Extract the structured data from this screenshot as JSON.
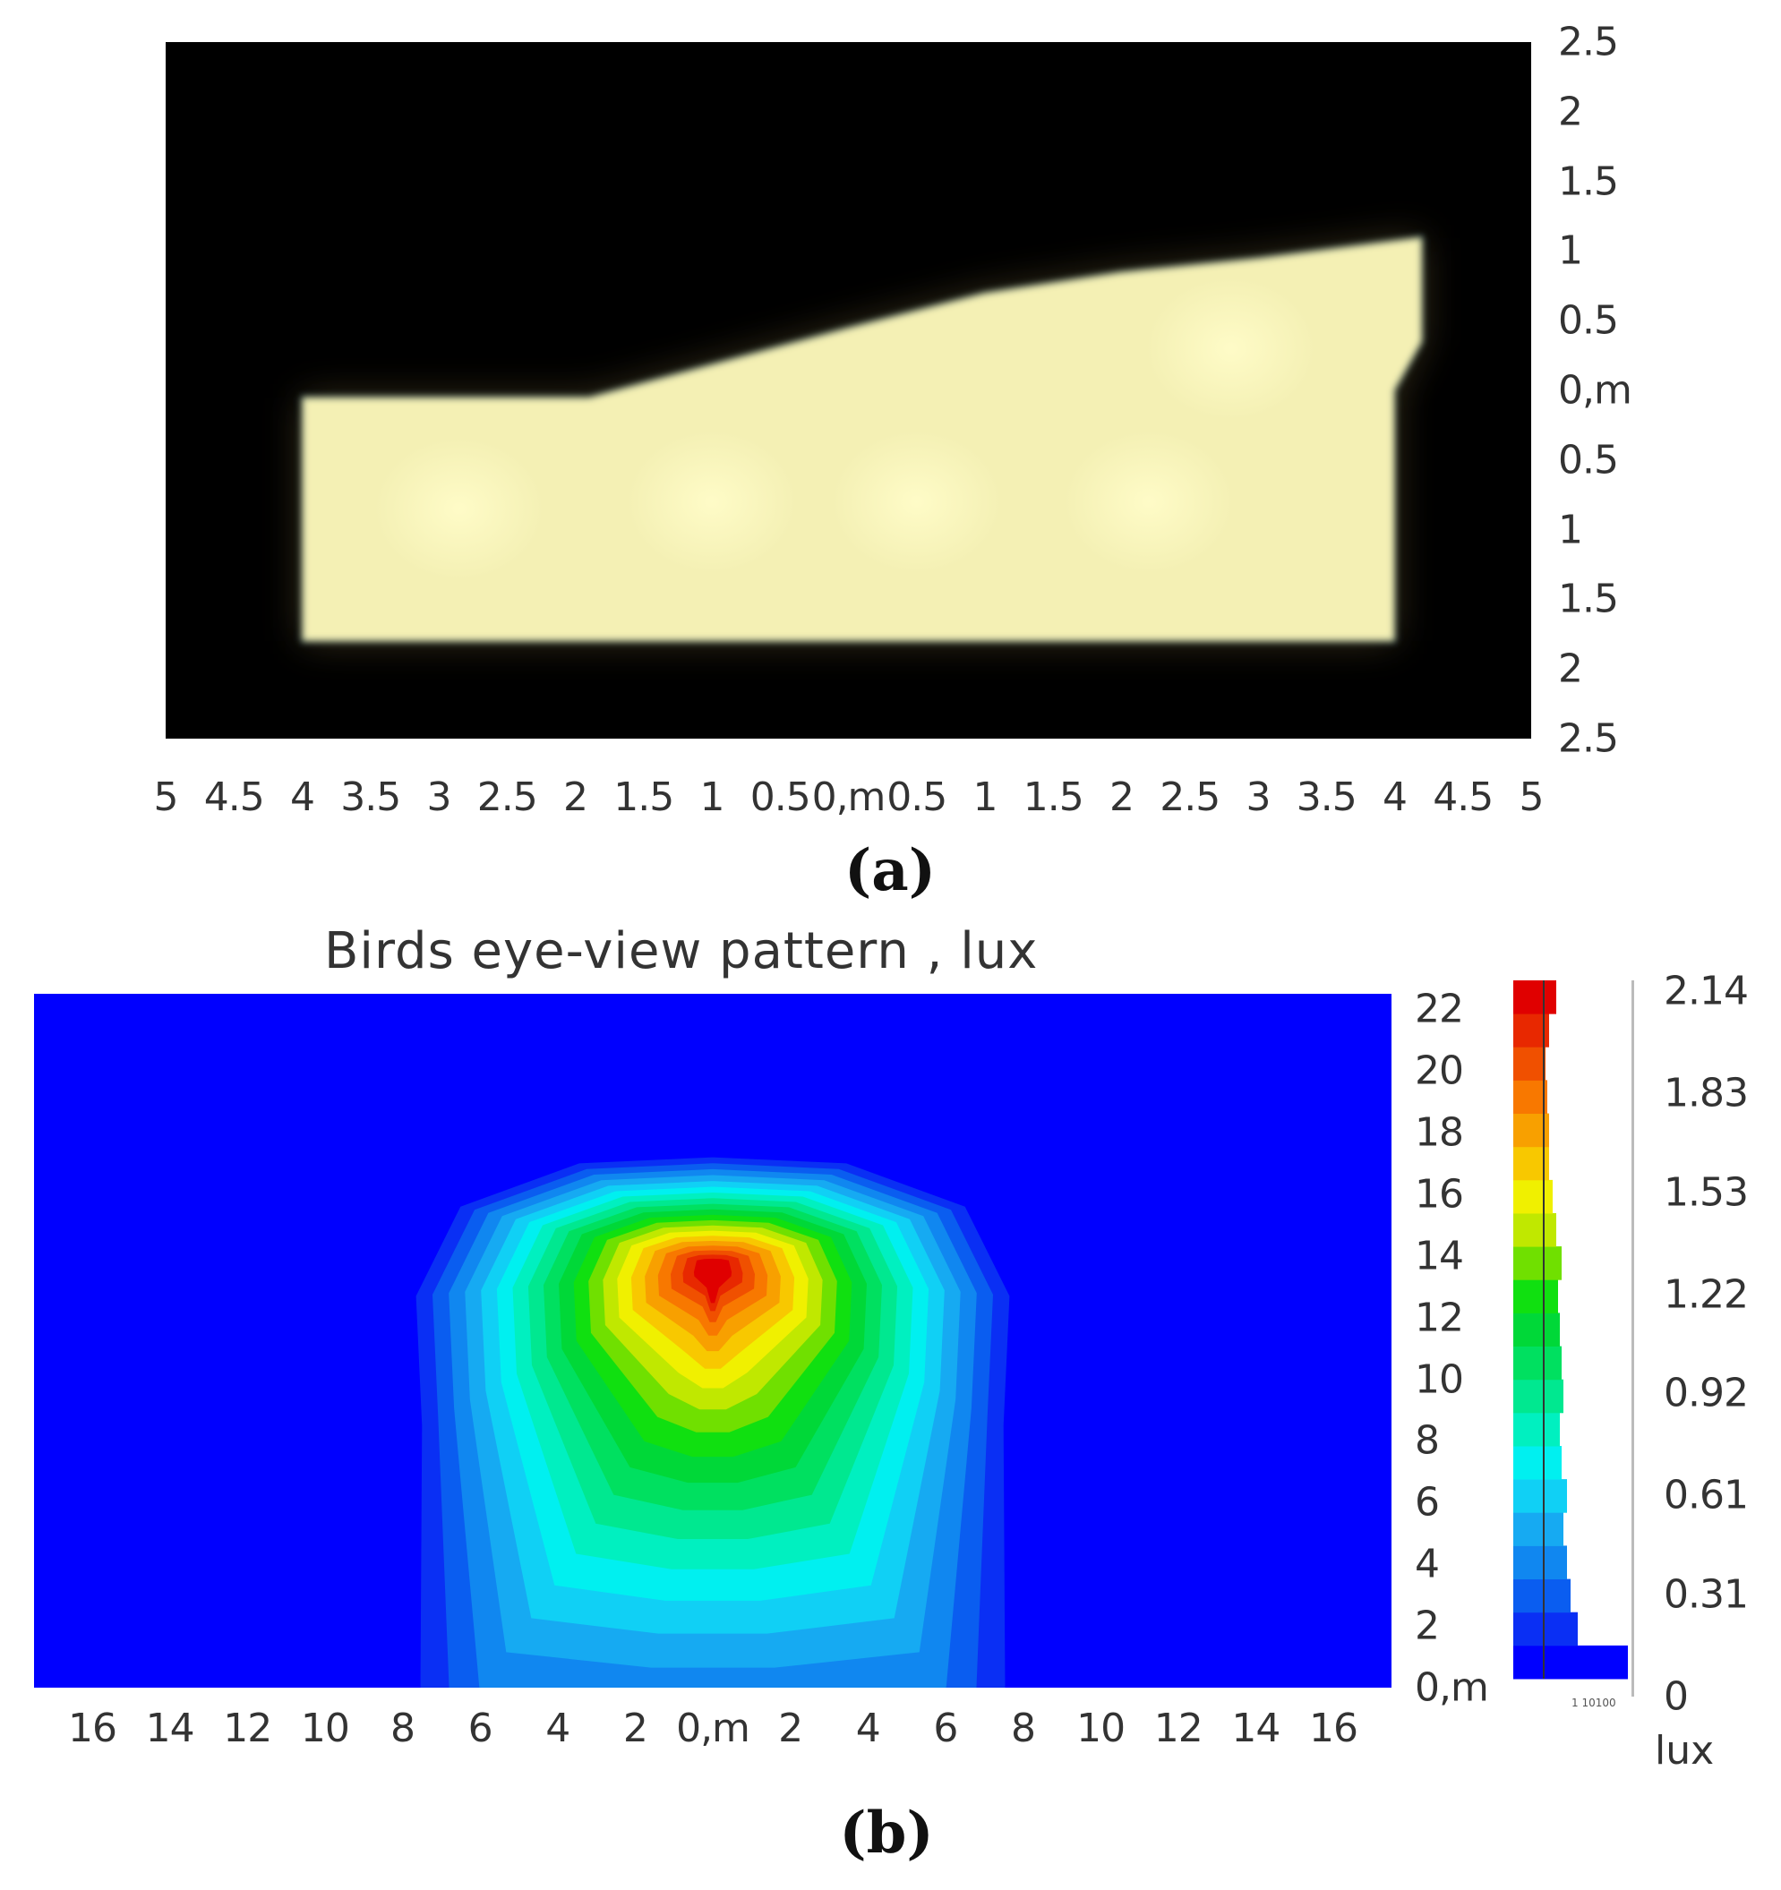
{
  "chart_data": [
    {
      "type": "heatmap",
      "panel_label": "(a)",
      "title": "",
      "x_ticks": [
        "5",
        "4.5",
        "4",
        "3.5",
        "3",
        "2.5",
        "2",
        "1.5",
        "1",
        "0.5",
        "0,m",
        "0.5",
        "1",
        "1.5",
        "2",
        "2.5",
        "3",
        "3.5",
        "4",
        "4.5",
        "5"
      ],
      "y_ticks": [
        "2.5",
        "2",
        "1.5",
        "1",
        "0.5",
        "0,m",
        "0.5",
        "1",
        "1.5",
        "2",
        "2.5"
      ],
      "xlim": [
        -5,
        5
      ],
      "ylim": [
        -2.5,
        2.5
      ],
      "y_axis_side": "right",
      "background_color": "#000000",
      "illuminated_region_color": "#f4f0b4",
      "illuminated_region": [
        {
          "x": -4.0,
          "y": -0.05
        },
        {
          "x": -1.9,
          "y": -0.05
        },
        {
          "x": 0.0,
          "y": 0.45
        },
        {
          "x": 1.0,
          "y": 0.7
        },
        {
          "x": 2.0,
          "y": 0.85
        },
        {
          "x": 3.0,
          "y": 0.95
        },
        {
          "x": 4.2,
          "y": 1.1
        },
        {
          "x": 4.2,
          "y": 0.35
        },
        {
          "x": 4.0,
          "y": 0.0
        },
        {
          "x": 4.0,
          "y": -1.8
        },
        {
          "x": -4.0,
          "y": -1.8
        }
      ],
      "hotspots": [
        {
          "x": -2.85,
          "y": -0.85
        },
        {
          "x": -1.0,
          "y": -0.8
        },
        {
          "x": 0.5,
          "y": -0.8
        },
        {
          "x": 2.2,
          "y": -0.8
        },
        {
          "x": 2.8,
          "y": 0.3
        }
      ]
    },
    {
      "type": "heatmap",
      "panel_label": "(b)",
      "title": "Birds eye-view pattern , lux",
      "x_ticks": [
        "16",
        "14",
        "12",
        "10",
        "8",
        "6",
        "4",
        "2",
        "0,m",
        "2",
        "4",
        "6",
        "8",
        "10",
        "12",
        "14",
        "16"
      ],
      "y_ticks": [
        "22",
        "20",
        "18",
        "16",
        "14",
        "12",
        "10",
        "8",
        "6",
        "4",
        "2",
        "0,m"
      ],
      "xlim": [
        -17.5,
        17.5
      ],
      "ylim": [
        0,
        22.5
      ],
      "y_axis_side": "right",
      "peak": {
        "x": 0,
        "y": 13.5,
        "value": 2.14
      },
      "colorbar": {
        "tick_labels": [
          "2.14",
          "1.83",
          "1.53",
          "1.22",
          "0.92",
          "0.61",
          "0.31",
          "0"
        ],
        "tick_values": [
          2.14,
          1.83,
          1.53,
          1.22,
          0.92,
          0.61,
          0.31,
          0
        ],
        "unit_label": "lux",
        "histogram_axis_label": "1  10100",
        "colors": [
          "#0000ff",
          "#0a2ff4",
          "#0a5df0",
          "#1087f0",
          "#16aaf2",
          "#10d0f5",
          "#00f0f0",
          "#00f0c0",
          "#00e890",
          "#00e060",
          "#00d838",
          "#10e010",
          "#70e000",
          "#c0e800",
          "#f0f000",
          "#f8c800",
          "#f8a000",
          "#f87800",
          "#f05000",
          "#e82800",
          "#e00000"
        ],
        "histogram_lengths": [
          3.2,
          1.8,
          1.6,
          1.5,
          1.4,
          1.5,
          1.35,
          1.3,
          1.4,
          1.35,
          1.3,
          1.25,
          1.35,
          1.2,
          1.1,
          1.0,
          1.0,
          0.95,
          0.9,
          1.0,
          1.2
        ]
      }
    }
  ]
}
